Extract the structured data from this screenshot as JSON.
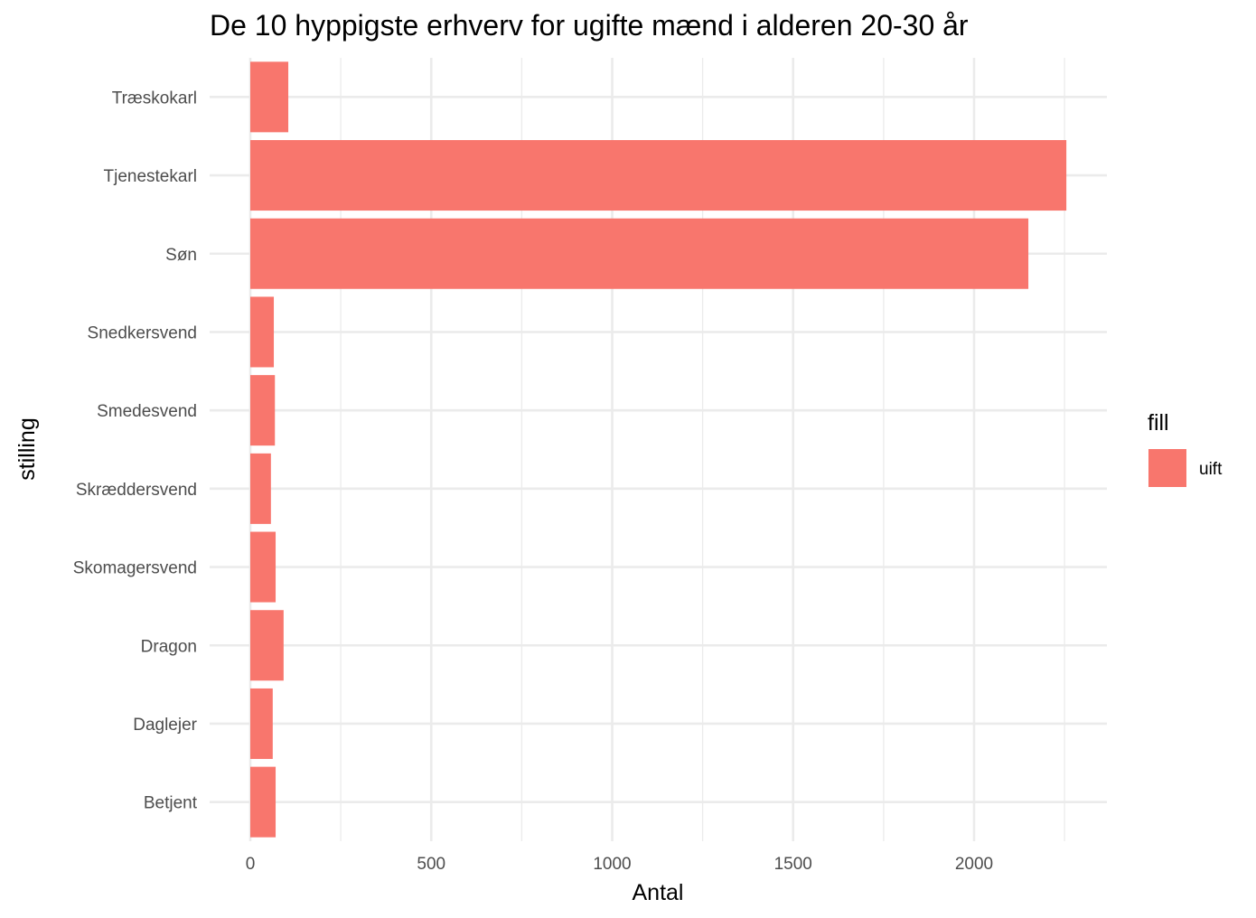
{
  "chart_data": {
    "type": "bar",
    "orientation": "horizontal",
    "title": "De 10 hyppigste erhverv for ugifte mænd i alderen 20-30 år",
    "xlabel": "Antal",
    "ylabel": "stilling",
    "categories": [
      "Betjent",
      "Daglejer",
      "Dragon",
      "Skomagersvend",
      "Skræddersvend",
      "Smedesvend",
      "Snedkersvend",
      "Søn",
      "Tjenestekarl",
      "Træskokarl"
    ],
    "series": [
      {
        "name": "uift",
        "values": [
          70,
          62,
          92,
          70,
          57,
          68,
          65,
          2150,
          2255,
          105
        ],
        "color": "#f8766d"
      }
    ],
    "xlim": [
      0,
      2255
    ],
    "xticks": [
      0,
      500,
      1000,
      1500,
      2000
    ],
    "grid": true,
    "legend": {
      "title": "fill",
      "position": "right",
      "entries": [
        "uift"
      ]
    }
  }
}
